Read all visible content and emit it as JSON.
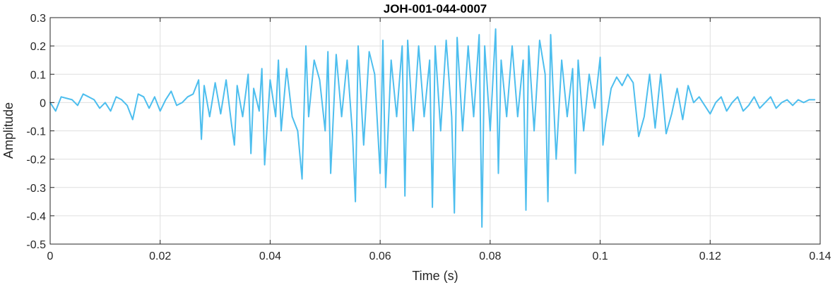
{
  "chart_data": {
    "type": "line",
    "title": "JOH-001-044-0007",
    "xlabel": "Time (s)",
    "ylabel": "Amplitude",
    "xlim": [
      0,
      0.14
    ],
    "ylim": [
      -0.5,
      0.3
    ],
    "grid": true,
    "xticks": [
      0,
      0.02,
      0.04,
      0.06,
      0.08,
      0.1,
      0.12,
      0.14
    ],
    "xtick_labels": [
      "0",
      "0.02",
      "0.04",
      "0.06",
      "0.08",
      "0.1",
      "0.12",
      "0.14"
    ],
    "yticks": [
      -0.5,
      -0.4,
      -0.3,
      -0.2,
      -0.1,
      0,
      0.1,
      0.2,
      0.3
    ],
    "ytick_labels": [
      "-0.5",
      "-0.4",
      "-0.3",
      "-0.2",
      "-0.1",
      "0",
      "0.1",
      "0.2",
      "0.3"
    ],
    "series": [
      {
        "color": "#4DBEEE",
        "x": [
          0,
          0.001,
          0.002,
          0.003,
          0.004,
          0.005,
          0.006,
          0.007,
          0.008,
          0.009,
          0.01,
          0.011,
          0.012,
          0.013,
          0.014,
          0.015,
          0.016,
          0.017,
          0.018,
          0.019,
          0.02,
          0.021,
          0.022,
          0.023,
          0.024,
          0.025,
          0.026,
          0.027,
          0.0275,
          0.028,
          0.029,
          0.03,
          0.031,
          0.032,
          0.033,
          0.0335,
          0.034,
          0.035,
          0.036,
          0.0365,
          0.037,
          0.038,
          0.0385,
          0.039,
          0.04,
          0.041,
          0.0415,
          0.042,
          0.043,
          0.044,
          0.045,
          0.0458,
          0.0465,
          0.047,
          0.048,
          0.049,
          0.05,
          0.0505,
          0.051,
          0.052,
          0.053,
          0.054,
          0.055,
          0.0555,
          0.056,
          0.057,
          0.058,
          0.059,
          0.06,
          0.0605,
          0.061,
          0.062,
          0.063,
          0.064,
          0.0645,
          0.065,
          0.066,
          0.067,
          0.068,
          0.069,
          0.0695,
          0.07,
          0.071,
          0.072,
          0.073,
          0.0735,
          0.074,
          0.075,
          0.076,
          0.077,
          0.078,
          0.0785,
          0.079,
          0.08,
          0.081,
          0.0815,
          0.082,
          0.083,
          0.084,
          0.085,
          0.086,
          0.0865,
          0.087,
          0.088,
          0.089,
          0.09,
          0.0905,
          0.091,
          0.092,
          0.093,
          0.094,
          0.095,
          0.0955,
          0.096,
          0.097,
          0.098,
          0.099,
          0.1,
          0.1005,
          0.101,
          0.102,
          0.103,
          0.104,
          0.105,
          0.106,
          0.107,
          0.108,
          0.109,
          0.11,
          0.111,
          0.112,
          0.113,
          0.114,
          0.115,
          0.116,
          0.117,
          0.118,
          0.119,
          0.12,
          0.121,
          0.122,
          0.123,
          0.124,
          0.125,
          0.126,
          0.127,
          0.128,
          0.129,
          0.13,
          0.131,
          0.132,
          0.133,
          0.134,
          0.135,
          0.136,
          0.137,
          0.138,
          0.139
        ],
        "y": [
          0,
          -0.03,
          0.02,
          0.015,
          0.01,
          -0.01,
          0.03,
          0.02,
          0.01,
          -0.02,
          0.0,
          -0.03,
          0.02,
          0.01,
          -0.01,
          -0.06,
          0.03,
          0.02,
          -0.02,
          0.02,
          -0.03,
          0.01,
          0.04,
          -0.01,
          0.0,
          0.02,
          0.03,
          0.08,
          -0.13,
          0.06,
          -0.05,
          0.07,
          -0.04,
          0.08,
          -0.08,
          -0.15,
          0.06,
          -0.05,
          0.1,
          -0.18,
          0.05,
          -0.03,
          0.12,
          -0.22,
          0.08,
          -0.05,
          0.15,
          -0.1,
          0.12,
          -0.05,
          -0.1,
          -0.27,
          0.2,
          -0.05,
          0.15,
          0.08,
          -0.1,
          0.18,
          -0.25,
          0.17,
          -0.05,
          0.15,
          -0.12,
          -0.35,
          0.2,
          -0.15,
          0.18,
          0.1,
          -0.25,
          0.22,
          -0.3,
          0.15,
          -0.05,
          0.2,
          -0.33,
          0.22,
          -0.1,
          0.2,
          -0.05,
          0.15,
          -0.37,
          0.2,
          -0.1,
          0.22,
          -0.05,
          -0.39,
          0.23,
          -0.1,
          0.2,
          -0.05,
          0.24,
          -0.44,
          0.2,
          -0.1,
          0.26,
          -0.25,
          0.15,
          -0.05,
          0.2,
          -0.05,
          0.15,
          -0.38,
          0.2,
          -0.1,
          0.22,
          0.1,
          -0.35,
          0.24,
          -0.2,
          0.15,
          -0.05,
          0.12,
          -0.25,
          0.15,
          -0.1,
          0.1,
          -0.02,
          0.16,
          -0.15,
          -0.07,
          0.05,
          0.09,
          0.06,
          0.1,
          0.07,
          -0.12,
          -0.05,
          0.1,
          -0.09,
          0.1,
          -0.11,
          -0.04,
          0.05,
          -0.06,
          0.06,
          0.0,
          0.02,
          -0.01,
          -0.04,
          0.0,
          0.02,
          -0.03,
          0.0,
          0.02,
          -0.03,
          -0.01,
          0.02,
          -0.02,
          0.0,
          0.02,
          -0.02,
          0.0,
          0.01,
          -0.01,
          0.01,
          0.0,
          0.01,
          0.01
        ]
      }
    ]
  }
}
